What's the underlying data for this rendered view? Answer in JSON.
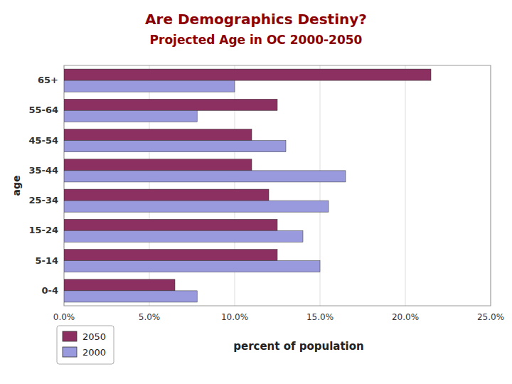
{
  "chart_data": {
    "type": "bar",
    "orientation": "horizontal",
    "title": "Are Demographics Destiny?",
    "subtitle": "Projected Age in OC 2000-2050",
    "categories": [
      "65+",
      "55-64",
      "45-54",
      "35-44",
      "25-34",
      "15-24",
      "5-14",
      "0-4"
    ],
    "series": [
      {
        "name": "2050",
        "color": "#8B3060",
        "values": [
          0.215,
          0.125,
          0.11,
          0.11,
          0.12,
          0.125,
          0.125,
          0.065
        ]
      },
      {
        "name": "2000",
        "color": "#9999DD",
        "values": [
          0.1,
          0.078,
          0.13,
          0.165,
          0.155,
          0.14,
          0.15,
          0.078
        ]
      }
    ],
    "xlabel": "percent of population",
    "ylabel": "age",
    "xlim": [
      0,
      0.25
    ],
    "xticks": [
      {
        "value": 0.0,
        "label": "0.0%"
      },
      {
        "value": 0.05,
        "label": "5.0%"
      },
      {
        "value": 0.1,
        "label": "10.0%"
      },
      {
        "value": 0.15,
        "label": "15.0%"
      },
      {
        "value": 0.2,
        "label": "20.0%"
      },
      {
        "value": 0.25,
        "label": "25.0%"
      }
    ],
    "grid": true,
    "legend": "lower left"
  }
}
